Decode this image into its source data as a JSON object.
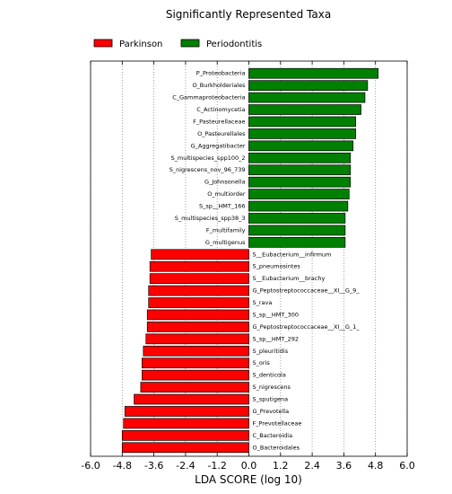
{
  "chart_data": {
    "type": "bar",
    "orientation": "horizontal",
    "title": "Significantly Represented Taxa",
    "xlabel": "LDA SCORE (log 10)",
    "ylabel": "",
    "xlim": [
      -6.0,
      6.0
    ],
    "xticks": [
      "-6.0",
      "-4.8",
      "-3.6",
      "-2.4",
      "-1.2",
      "0.0",
      "1.2",
      "2.4",
      "3.6",
      "4.8",
      "6.0"
    ],
    "grid": "vertical dotted",
    "legend_placement": "top-left",
    "series": [
      {
        "name": "Parkinson",
        "color": "#ff0000"
      },
      {
        "name": "Periodontitis",
        "color": "#008000"
      }
    ],
    "bars": [
      {
        "label": "P_Proteobacteria",
        "value": 4.9,
        "group": "Periodontitis"
      },
      {
        "label": "O_Burkholderiales",
        "value": 4.5,
        "group": "Periodontitis"
      },
      {
        "label": "C_Gammaproteobacteria",
        "value": 4.4,
        "group": "Periodontitis"
      },
      {
        "label": "C_Actinomycetia",
        "value": 4.25,
        "group": "Periodontitis"
      },
      {
        "label": "F_Pasteurellaceae",
        "value": 4.05,
        "group": "Periodontitis"
      },
      {
        "label": "O_Pasteurellales",
        "value": 4.05,
        "group": "Periodontitis"
      },
      {
        "label": "G_Aggregatibacter",
        "value": 3.95,
        "group": "Periodontitis"
      },
      {
        "label": "S_multispecies_spp100_2",
        "value": 3.85,
        "group": "Periodontitis"
      },
      {
        "label": "S_nigrescens_nov_96_739",
        "value": 3.85,
        "group": "Periodontitis"
      },
      {
        "label": "G_Johnsonella",
        "value": 3.85,
        "group": "Periodontitis"
      },
      {
        "label": "O_multiorder",
        "value": 3.8,
        "group": "Periodontitis"
      },
      {
        "label": "S_sp__HMT_166",
        "value": 3.75,
        "group": "Periodontitis"
      },
      {
        "label": "S_multispecies_spp38_3",
        "value": 3.65,
        "group": "Periodontitis"
      },
      {
        "label": "F_multifamily",
        "value": 3.65,
        "group": "Periodontitis"
      },
      {
        "label": "G_multigenus",
        "value": 3.65,
        "group": "Periodontitis"
      },
      {
        "label": "S__Eubacterium__infirmum",
        "value": -3.7,
        "group": "Parkinson"
      },
      {
        "label": "S_pneumosintes",
        "value": -3.75,
        "group": "Parkinson"
      },
      {
        "label": "S__Eubacterium__brachy",
        "value": -3.75,
        "group": "Parkinson"
      },
      {
        "label": "G_Peptostreptococcaceae__XI__G_9_",
        "value": -3.8,
        "group": "Parkinson"
      },
      {
        "label": "S_rava",
        "value": -3.8,
        "group": "Parkinson"
      },
      {
        "label": "S_sp__HMT_300",
        "value": -3.85,
        "group": "Parkinson"
      },
      {
        "label": "G_Peptostreptococcaceae__XI__G_1_",
        "value": -3.85,
        "group": "Parkinson"
      },
      {
        "label": "S_sp__HMT_292",
        "value": -3.9,
        "group": "Parkinson"
      },
      {
        "label": "S_pleuritidis",
        "value": -4.0,
        "group": "Parkinson"
      },
      {
        "label": "S_oris",
        "value": -4.05,
        "group": "Parkinson"
      },
      {
        "label": "S_denticola",
        "value": -4.05,
        "group": "Parkinson"
      },
      {
        "label": "S_nigrescens",
        "value": -4.1,
        "group": "Parkinson"
      },
      {
        "label": "S_sputigena",
        "value": -4.35,
        "group": "Parkinson"
      },
      {
        "label": "G_Prevotella",
        "value": -4.7,
        "group": "Parkinson"
      },
      {
        "label": "F_Prevotellaceae",
        "value": -4.75,
        "group": "Parkinson"
      },
      {
        "label": "C_Bacteroidia",
        "value": -4.8,
        "group": "Parkinson"
      },
      {
        "label": "O_Bacteroidales",
        "value": -4.8,
        "group": "Parkinson"
      }
    ]
  }
}
